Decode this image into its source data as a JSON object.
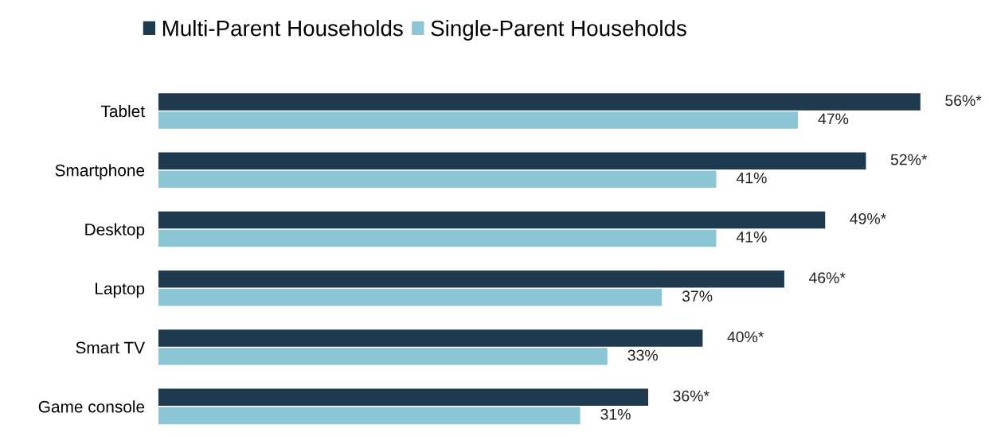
{
  "chart_data": {
    "type": "bar",
    "orientation": "horizontal",
    "categories": [
      "Tablet",
      "Smartphone",
      "Desktop",
      "Laptop",
      "Smart TV",
      "Game console"
    ],
    "series": [
      {
        "name": "Multi-Parent Households",
        "color": "#1f3a4f",
        "values": [
          56,
          52,
          49,
          46,
          40,
          36
        ],
        "value_labels": [
          "56%*",
          "52%*",
          "49%*",
          "46%*",
          "40%*",
          "36%*"
        ]
      },
      {
        "name": "Single-Parent Households",
        "color": "#8cc5d3",
        "values": [
          47,
          41,
          41,
          37,
          33,
          31
        ],
        "value_labels": [
          "47%",
          "41%",
          "41%",
          "37%",
          "33%",
          "31%"
        ]
      }
    ],
    "tick_labels": "y",
    "grid": false,
    "legend": "top"
  }
}
